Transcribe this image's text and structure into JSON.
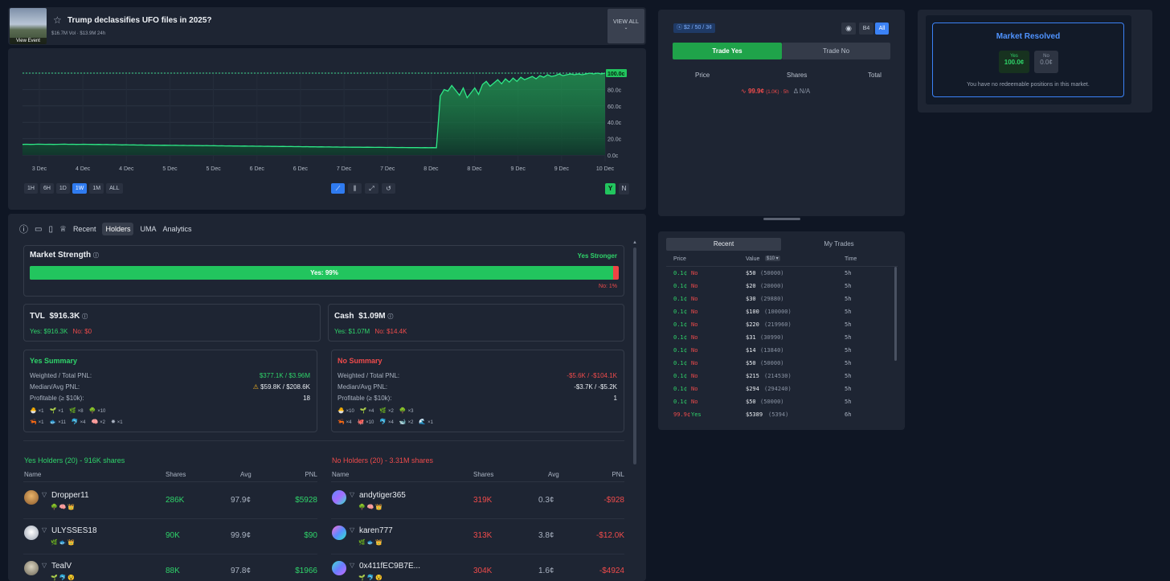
{
  "header": {
    "thumb_label": "View Event",
    "title": "Trump declassifies UFO files in 2025?",
    "subtitle": "$16.7M Vol · $13.9M 24h",
    "view_all": "VIEW ALL"
  },
  "chart": {
    "y_ticks": [
      "100.0c",
      "80.0c",
      "60.0c",
      "40.0c",
      "20.0c",
      "0.0c"
    ],
    "x_ticks": [
      "3 Dec",
      "4 Dec",
      "4 Dec",
      "5 Dec",
      "5 Dec",
      "6 Dec",
      "6 Dec",
      "7 Dec",
      "7 Dec",
      "8 Dec",
      "8 Dec",
      "9 Dec",
      "9 Dec",
      "10 Dec"
    ],
    "current_label": "100.0c",
    "ranges": [
      "1H",
      "6H",
      "1D",
      "1W",
      "1M",
      "ALL"
    ],
    "active_range": "1W",
    "yes_btn": "Y",
    "no_btn": "N"
  },
  "chart_data": {
    "type": "area",
    "ylim": [
      0,
      100
    ],
    "y_unit": "c",
    "values": [
      13,
      13.2,
      13,
      13.1,
      13.3,
      13.2,
      13.1,
      13.2,
      13,
      13.1,
      13.2,
      13.3,
      13.1,
      13.2,
      13,
      13.1,
      13.2,
      13.1,
      13,
      12.9,
      13,
      12.8,
      12.9,
      12.7,
      12.8,
      12.6,
      12.5,
      12.6,
      12.4,
      12.5,
      12.3,
      12.4,
      12.2,
      12.3,
      12.1,
      12.2,
      12,
      12.1,
      12,
      11.9,
      12,
      11.8,
      11.9,
      11.7,
      11.8,
      11.6,
      11.7,
      11.5,
      11.6,
      11.4,
      11.5,
      11.3,
      11.4,
      11.2,
      11.3,
      11.1,
      11.2,
      11,
      11.1,
      10.9,
      11,
      10.8,
      10.9,
      10.7,
      10.8,
      10.6,
      10.7,
      10.5,
      10.6,
      10.4,
      10.5,
      10.3,
      10.4,
      10.2,
      10.3,
      10.1,
      10.2,
      10,
      10.1,
      9.9,
      10,
      9.8,
      9.9,
      9.7,
      9.8,
      9.7,
      9.6,
      9.7,
      9.6,
      9.5,
      9.6,
      9.5,
      9.4,
      9.5,
      9.4,
      9.3,
      9.4,
      9.3,
      9.2,
      9.3,
      9.2,
      9.1,
      9.2,
      9.1,
      9.0,
      9.1,
      9.0,
      9.1,
      9.0,
      72,
      80,
      78,
      85,
      79,
      73,
      82,
      70,
      76,
      82,
      74,
      86,
      90,
      84,
      88,
      92,
      87,
      93,
      89,
      94,
      90,
      95,
      92,
      94,
      96,
      93,
      97,
      95,
      98,
      96,
      97,
      99,
      97,
      98,
      99,
      98,
      99,
      98,
      99,
      100,
      99,
      100,
      99,
      100
    ]
  },
  "order": {
    "ticket": "$2 / 50 / 3¢",
    "b4": "B4",
    "all": "All",
    "trade_yes": "Trade Yes",
    "trade_no": "Trade No",
    "col_price": "Price",
    "col_shares": "Shares",
    "col_total": "Total",
    "last_price": "99.9¢",
    "last_meta": "(1.0K) · 5h",
    "delta": "Δ N/A"
  },
  "resolved": {
    "title": "Market Resolved",
    "yes_label": "Yes",
    "yes_value": "100.0¢",
    "no_label": "No",
    "no_value": "0.0¢",
    "note": "You have no redeemable positions in this market."
  },
  "trades": {
    "tab_recent": "Recent",
    "tab_mine": "My Trades",
    "col_price": "Price",
    "col_value": "Value",
    "value_filter": "$10",
    "col_time": "Time",
    "rows": [
      {
        "price": "0.1¢",
        "side": "No",
        "value": "$50",
        "shares": "(50000)",
        "time": "5h"
      },
      {
        "price": "0.1¢",
        "side": "No",
        "value": "$20",
        "shares": "(20000)",
        "time": "5h"
      },
      {
        "price": "0.1¢",
        "side": "No",
        "value": "$30",
        "shares": "(29880)",
        "time": "5h"
      },
      {
        "price": "0.1¢",
        "side": "No",
        "value": "$100",
        "shares": "(100000)",
        "time": "5h"
      },
      {
        "price": "0.1¢",
        "side": "No",
        "value": "$220",
        "shares": "(219960)",
        "time": "5h"
      },
      {
        "price": "0.1¢",
        "side": "No",
        "value": "$31",
        "shares": "(30990)",
        "time": "5h"
      },
      {
        "price": "0.1¢",
        "side": "No",
        "value": "$14",
        "shares": "(13840)",
        "time": "5h"
      },
      {
        "price": "0.1¢",
        "side": "No",
        "value": "$50",
        "shares": "(50000)",
        "time": "5h"
      },
      {
        "price": "0.1¢",
        "side": "No",
        "value": "$215",
        "shares": "(214530)",
        "time": "5h"
      },
      {
        "price": "0.1¢",
        "side": "No",
        "value": "$294",
        "shares": "(294240)",
        "time": "5h"
      },
      {
        "price": "0.1¢",
        "side": "No",
        "value": "$50",
        "shares": "(50000)",
        "time": "5h"
      },
      {
        "price": "99.9¢",
        "side": "Yes",
        "value": "$5389",
        "shares": "(5394)",
        "time": "6h"
      }
    ]
  },
  "tabs": {
    "recent": "Recent",
    "holders": "Holders",
    "uma": "UMA",
    "analytics": "Analytics"
  },
  "strength": {
    "title": "Market Strength",
    "verdict": "Yes Stronger",
    "yes_text": "Yes: 99%",
    "no_text": "No: 1%",
    "yes_pct": 99
  },
  "tvl": {
    "label": "TVL",
    "value": "$916.3K",
    "yes": "Yes: $916.3K",
    "no": "No: $0"
  },
  "cash": {
    "label": "Cash",
    "value": "$1.09M",
    "yes": "Yes: $1.07M",
    "no": "No: $14.4K"
  },
  "yes_summary": {
    "title": "Yes Summary",
    "l1": "Weighted / Total PNL:",
    "v1": "$377.1K / $3.96M",
    "l2": "Median/Avg PNL:",
    "v2": "$59.8K / $208.6K",
    "l3": "Profitable (≥ $10k):",
    "v3": "18",
    "badges1": [
      "×1",
      "×1",
      "×8",
      "×10"
    ],
    "badges2": [
      "×1",
      "×11",
      "×4",
      "×2",
      "×1"
    ]
  },
  "no_summary": {
    "title": "No Summary",
    "l1": "Weighted / Total PNL:",
    "v1": "-$5.6K / -$104.1K",
    "l2": "Median/Avg PNL:",
    "v2": "-$3.7K / -$5.2K",
    "l3": "Profitable (≥ $10k):",
    "v3": "1",
    "badges1": [
      "×10",
      "×4",
      "×2",
      "×3"
    ],
    "badges2": [
      "×4",
      "×10",
      "×4",
      "×2",
      "×1"
    ]
  },
  "yes_holders": {
    "title": "Yes Holders (20) - 916K shares",
    "col_name": "Name",
    "col_shares": "Shares",
    "col_avg": "Avg",
    "col_pnl": "PNL",
    "rows": [
      {
        "name": "Dropper11",
        "shares": "286K",
        "avg": "97.9¢",
        "pnl": "$5928"
      },
      {
        "name": "ULYSSES18",
        "shares": "90K",
        "avg": "99.9¢",
        "pnl": "$90"
      },
      {
        "name": "TealV",
        "shares": "88K",
        "avg": "97.8¢",
        "pnl": "$1966"
      }
    ]
  },
  "no_holders": {
    "title": "No Holders (20) - 3.31M shares",
    "col_name": "Name",
    "col_shares": "Shares",
    "col_avg": "Avg",
    "col_pnl": "PNL",
    "rows": [
      {
        "name": "andytiger365",
        "shares": "319K",
        "avg": "0.3¢",
        "pnl": "-$928"
      },
      {
        "name": "karen777",
        "shares": "313K",
        "avg": "3.8¢",
        "pnl": "-$12.0K"
      },
      {
        "name": "0x411fEC9B7E...",
        "shares": "304K",
        "avg": "1.6¢",
        "pnl": "-$4924"
      }
    ]
  },
  "colors": {
    "green": "#2fd46a",
    "red": "#ef4b4b",
    "blue": "#3b82f6",
    "panel": "#1e2533",
    "bg": "#0f1624"
  }
}
